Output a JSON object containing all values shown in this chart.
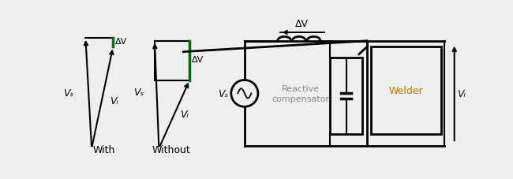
{
  "bg_color": "#efefef",
  "line_color": "#000000",
  "green_color": "#007000",
  "orange_color": "#b87800",
  "label_with": "With",
  "label_without": "Without",
  "delta_v": "ΔV",
  "vs_label": "Vₛ",
  "vl_label": "Vₗ",
  "reactive_text": "Reactive\ncompensator",
  "welder_text": "Welder"
}
